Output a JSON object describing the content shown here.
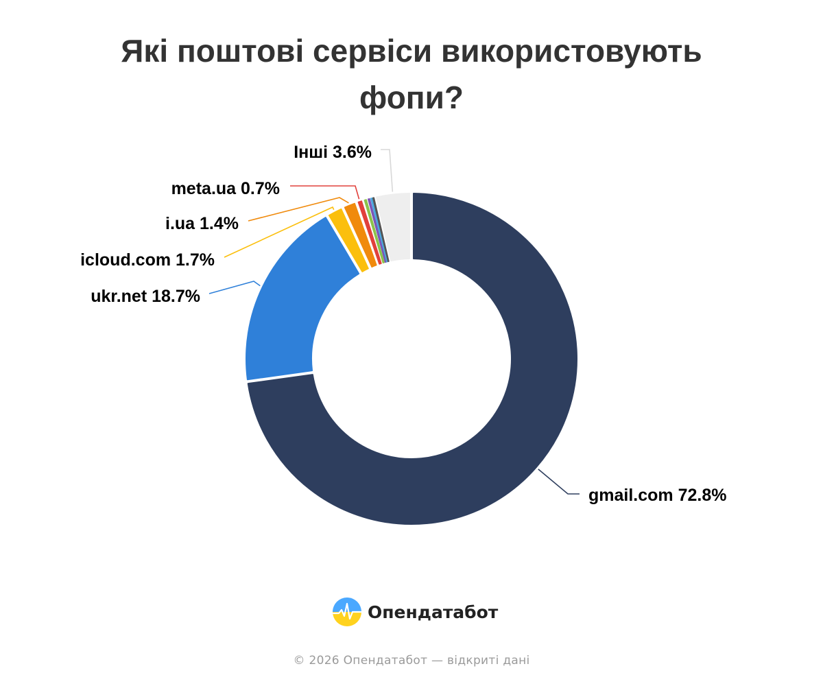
{
  "chart_data": {
    "type": "pie",
    "title": "Які поштові сервіси використовують фопи?",
    "slices": [
      {
        "label": "gmail.com",
        "value": 72.8,
        "display": "72.8%",
        "color": "#2e3e5e",
        "show_label": true
      },
      {
        "label": "ukr.net",
        "value": 18.7,
        "display": "18.7%",
        "color": "#2f80d9",
        "show_label": true
      },
      {
        "label": "icloud.com",
        "value": 1.7,
        "display": "1.7%",
        "color": "#fbbf0d",
        "show_label": true
      },
      {
        "label": "i.ua",
        "value": 1.4,
        "display": "1.4%",
        "color": "#f08a0c",
        "show_label": true
      },
      {
        "label": "meta.ua",
        "value": 0.7,
        "display": "0.7%",
        "color": "#e1403b",
        "show_label": true
      },
      {
        "label": "",
        "value": 0.4,
        "display": "",
        "color": "#8bc34a",
        "show_label": false
      },
      {
        "label": "",
        "value": 0.3,
        "display": "",
        "color": "#7b56b5",
        "show_label": false
      },
      {
        "label": "",
        "value": 0.2,
        "display": "",
        "color": "#4aa8e0",
        "show_label": false
      },
      {
        "label": "",
        "value": 0.2,
        "display": "",
        "color": "#555555",
        "show_label": false
      },
      {
        "label": "Інші",
        "value": 3.6,
        "display": "3.6%",
        "color": "#eeeeee",
        "show_label": true
      }
    ],
    "legend": "none",
    "start_angle_deg": 0,
    "direction": "clockwise"
  },
  "brand": {
    "name": "Опендатабот",
    "logo_colors": [
      "#ffd21e",
      "#4aa8ff"
    ]
  },
  "footer": {
    "text": "© 2026 Опендатабот — відкриті дані"
  }
}
